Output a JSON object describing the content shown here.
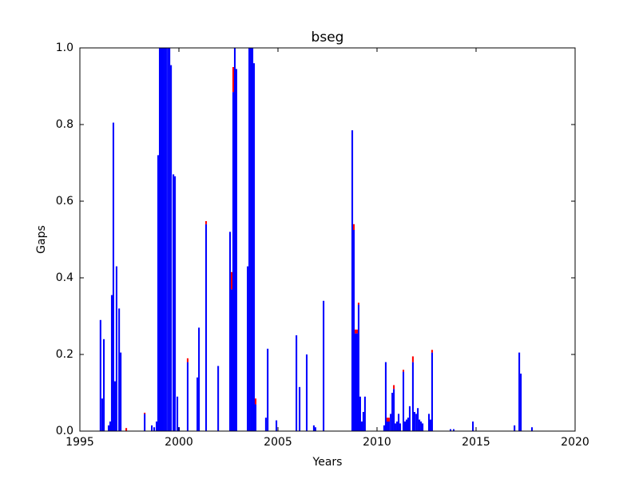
{
  "chart_data": {
    "type": "stacked_bar",
    "title": "bseg",
    "x_label": "Years",
    "y_label": "Gaps",
    "x": [
      1996.0,
      1996.09,
      1996.17,
      1996.41,
      1996.49,
      1996.57,
      1996.65,
      1996.73,
      1996.81,
      1996.94,
      1997.02,
      1997.3,
      1998.23,
      1998.59,
      1998.71,
      1998.83,
      1998.91,
      1998.99,
      1999.07,
      1999.15,
      1999.23,
      1999.31,
      1999.4,
      1999.48,
      1999.56,
      1999.68,
      1999.76,
      1999.88,
      1999.96,
      2000.4,
      2000.89,
      2000.97,
      2001.33,
      2001.94,
      2002.54,
      2002.62,
      2002.7,
      2002.78,
      2002.86,
      2003.43,
      2003.51,
      2003.59,
      2003.67,
      2003.75,
      2003.83,
      2004.35,
      2004.44,
      2004.88,
      2005.89,
      2006.05,
      2006.41,
      2006.77,
      2006.85,
      2007.26,
      2008.71,
      2008.79,
      2008.87,
      2008.95,
      2009.03,
      2009.11,
      2009.19,
      2009.27,
      2009.35,
      2010.32,
      2010.4,
      2010.48,
      2010.56,
      2010.65,
      2010.73,
      2010.81,
      2010.89,
      2010.97,
      2011.05,
      2011.13,
      2011.29,
      2011.37,
      2011.45,
      2011.53,
      2011.61,
      2011.77,
      2011.85,
      2011.94,
      2012.02,
      2012.1,
      2012.18,
      2012.26,
      2012.58,
      2012.66,
      2012.74,
      2013.67,
      2013.83,
      2014.8,
      2016.9,
      2017.14,
      2017.22,
      2017.78
    ],
    "series": [
      {
        "color": "#0000ff",
        "values": [
          0.29,
          0.085,
          0.24,
          0.015,
          0.025,
          0.355,
          0.805,
          0.13,
          0.43,
          0.32,
          0.205,
          0,
          0.045,
          0.015,
          0.01,
          0.025,
          0.72,
          1,
          1,
          1,
          1,
          1,
          1,
          1,
          0.955,
          0.67,
          0.665,
          0.09,
          0.01,
          0.18,
          0.14,
          0.27,
          0.54,
          0.17,
          0.52,
          0.37,
          0.885,
          1,
          0.945,
          0.43,
          1,
          1,
          1,
          0.96,
          0.07,
          0.035,
          0.215,
          0.028,
          0.25,
          0.115,
          0.2,
          0.015,
          0.01,
          0.34,
          0.785,
          0.525,
          0.255,
          0.255,
          0.33,
          0.09,
          0.025,
          0.05,
          0.09,
          0.015,
          0.18,
          0.025,
          0.025,
          0.045,
          0.1,
          0.11,
          0.02,
          0.025,
          0.045,
          0.02,
          0.155,
          0.025,
          0.03,
          0.035,
          0.065,
          0.18,
          0.05,
          0.045,
          0.06,
          0.03,
          0.025,
          0.02,
          0.045,
          0.03,
          0.205,
          0.005,
          0.005,
          0.025,
          0.015,
          0.205,
          0.15,
          0.01
        ]
      },
      {
        "color": "#ff0000",
        "values": [
          0,
          0,
          0,
          0,
          0,
          0,
          0,
          0,
          0,
          0,
          0,
          0.008,
          0.003,
          0,
          0,
          0,
          0,
          0,
          0,
          0,
          0,
          0,
          0,
          0,
          0,
          0,
          0,
          0,
          0,
          0.01,
          0,
          0,
          0.008,
          0,
          0,
          0.045,
          0.065,
          0,
          0,
          0,
          0,
          0,
          0,
          0,
          0.015,
          0,
          0,
          0,
          0,
          0,
          0,
          0,
          0,
          0,
          0,
          0.015,
          0.01,
          0.01,
          0.005,
          0,
          0,
          0,
          0,
          0,
          0,
          0.01,
          0.01,
          0,
          0,
          0.01,
          0,
          0,
          0,
          0,
          0.005,
          0,
          0,
          0,
          0,
          0.015,
          0,
          0,
          0,
          0,
          0,
          0,
          0,
          0,
          0.007,
          0,
          0,
          0,
          0,
          0,
          0,
          0
        ]
      }
    ],
    "xlim": [
      1995,
      2020
    ],
    "xticks": [
      1995,
      2000,
      2005,
      2010,
      2015,
      2020
    ],
    "ylim": [
      0,
      1
    ],
    "yticks": [
      {
        "value": 0,
        "label": "0.0"
      },
      0.2,
      0.4,
      0.6,
      0.8,
      {
        "value": 1,
        "label": "1.0"
      }
    ]
  }
}
